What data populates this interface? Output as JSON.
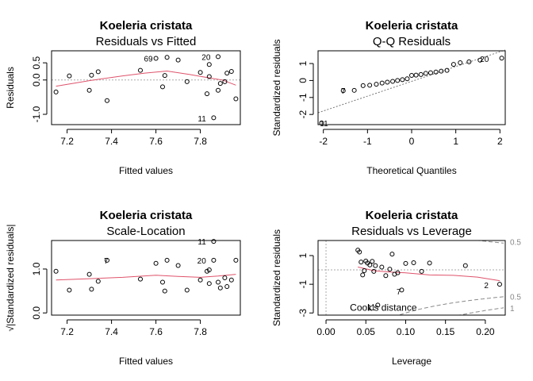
{
  "chart_data": [
    {
      "type": "scatter",
      "title": "Koeleria cristata",
      "subtitle": "Residuals vs Fitted",
      "xlabel": "Fitted values",
      "ylabel": "Residuals",
      "xlim": [
        7.13,
        7.98
      ],
      "ylim": [
        -1.3,
        0.85
      ],
      "xticks": [
        7.2,
        7.4,
        7.6,
        7.8
      ],
      "yticks": [
        -1.0,
        0.0,
        0.5
      ],
      "xtick_labels": [
        "7.2",
        "7.4",
        "7.6",
        "7.8"
      ],
      "ytick_labels": [
        "-1.0",
        "0.0",
        "0.5"
      ],
      "ref_line": {
        "axis": "y",
        "value": 0
      },
      "points": [
        {
          "x": 7.15,
          "y": -0.35
        },
        {
          "x": 7.21,
          "y": 0.12
        },
        {
          "x": 7.3,
          "y": -0.3
        },
        {
          "x": 7.31,
          "y": 0.14
        },
        {
          "x": 7.34,
          "y": 0.24
        },
        {
          "x": 7.38,
          "y": -0.6
        },
        {
          "x": 7.53,
          "y": 0.28
        },
        {
          "x": 7.6,
          "y": 0.63
        },
        {
          "x": 7.63,
          "y": -0.2
        },
        {
          "x": 7.64,
          "y": 0.13
        },
        {
          "x": 7.65,
          "y": 0.66
        },
        {
          "x": 7.7,
          "y": 0.58
        },
        {
          "x": 7.74,
          "y": -0.05
        },
        {
          "x": 7.8,
          "y": 0.22
        },
        {
          "x": 7.83,
          "y": -0.4
        },
        {
          "x": 7.84,
          "y": 0.1
        },
        {
          "x": 7.84,
          "y": 0.45
        },
        {
          "x": 7.86,
          "y": -1.1
        },
        {
          "x": 7.88,
          "y": 0.68
        },
        {
          "x": 7.88,
          "y": -0.3
        },
        {
          "x": 7.89,
          "y": -0.1
        },
        {
          "x": 7.91,
          "y": -0.05
        },
        {
          "x": 7.92,
          "y": 0.2
        },
        {
          "x": 7.94,
          "y": 0.25
        },
        {
          "x": 7.96,
          "y": -0.55
        }
      ],
      "smooth": [
        {
          "x": 7.15,
          "y": -0.18
        },
        {
          "x": 7.3,
          "y": -0.02
        },
        {
          "x": 7.45,
          "y": 0.12
        },
        {
          "x": 7.55,
          "y": 0.2
        },
        {
          "x": 7.65,
          "y": 0.26
        },
        {
          "x": 7.75,
          "y": 0.16
        },
        {
          "x": 7.85,
          "y": 0.05
        },
        {
          "x": 7.9,
          "y": 0.0
        },
        {
          "x": 7.96,
          "y": -0.15
        }
      ],
      "point_labels": [
        {
          "text": "69",
          "x": 7.6,
          "y": 0.63
        },
        {
          "text": "20",
          "x": 7.86,
          "y": 0.68
        },
        {
          "text": "11",
          "x": 7.84,
          "y": -1.12
        }
      ]
    },
    {
      "type": "scatter",
      "title": "Koeleria cristata",
      "subtitle": "Q-Q Residuals",
      "xlabel": "Theoretical Quantiles",
      "ylabel": "Standardized residuals",
      "xlim": [
        -2.12,
        2.12
      ],
      "ylim": [
        -2.6,
        1.75
      ],
      "xticks": [
        -2,
        -1,
        0,
        1,
        2
      ],
      "yticks": [
        -2,
        -1,
        0,
        1
      ],
      "xtick_labels": [
        "-2",
        "-1",
        "0",
        "1",
        "2"
      ],
      "ytick_labels": [
        "-2",
        "-1",
        "0",
        "1"
      ],
      "ref_line": {
        "axis": "diag",
        "from": [
          -2.12,
          -1.9
        ],
        "to": [
          2.12,
          1.8
        ]
      },
      "points": [
        {
          "x": -2.04,
          "y": -2.5
        },
        {
          "x": -1.55,
          "y": -0.6
        },
        {
          "x": -1.3,
          "y": -0.58
        },
        {
          "x": -1.1,
          "y": -0.3
        },
        {
          "x": -0.95,
          "y": -0.28
        },
        {
          "x": -0.8,
          "y": -0.22
        },
        {
          "x": -0.67,
          "y": -0.15
        },
        {
          "x": -0.55,
          "y": -0.1
        },
        {
          "x": -0.43,
          "y": -0.05
        },
        {
          "x": -0.32,
          "y": 0.0
        },
        {
          "x": -0.21,
          "y": 0.05
        },
        {
          "x": -0.1,
          "y": 0.1
        },
        {
          "x": 0.0,
          "y": 0.3
        },
        {
          "x": 0.1,
          "y": 0.32
        },
        {
          "x": 0.21,
          "y": 0.35
        },
        {
          "x": 0.32,
          "y": 0.42
        },
        {
          "x": 0.43,
          "y": 0.46
        },
        {
          "x": 0.55,
          "y": 0.5
        },
        {
          "x": 0.67,
          "y": 0.55
        },
        {
          "x": 0.8,
          "y": 0.6
        },
        {
          "x": 0.95,
          "y": 0.95
        },
        {
          "x": 1.1,
          "y": 1.05
        },
        {
          "x": 1.3,
          "y": 1.1
        },
        {
          "x": 1.55,
          "y": 1.2
        },
        {
          "x": 2.04,
          "y": 1.32
        }
      ],
      "point_labels": [
        {
          "text": "20",
          "x": 1.82,
          "y": 1.28
        },
        {
          "text": "7",
          "x": -1.43,
          "y": -0.6
        },
        {
          "text": "11",
          "x": -1.82,
          "y": -2.5
        }
      ]
    },
    {
      "type": "scatter",
      "title": "Koeleria cristata",
      "subtitle": "Scale-Location",
      "xlabel": "Fitted values",
      "ylabel": "√|Standardized residuals|",
      "xlim": [
        7.13,
        7.98
      ],
      "ylim": [
        -0.05,
        1.65
      ],
      "xticks": [
        7.2,
        7.4,
        7.6,
        7.8
      ],
      "yticks": [
        0.0,
        1.0
      ],
      "xtick_labels": [
        "7.2",
        "7.4",
        "7.6",
        "7.8"
      ],
      "ytick_labels": [
        "0.0",
        "1.0"
      ],
      "points": [
        {
          "x": 7.15,
          "y": 0.95
        },
        {
          "x": 7.21,
          "y": 0.52
        },
        {
          "x": 7.3,
          "y": 0.88
        },
        {
          "x": 7.31,
          "y": 0.54
        },
        {
          "x": 7.34,
          "y": 0.72
        },
        {
          "x": 7.38,
          "y": 1.2
        },
        {
          "x": 7.53,
          "y": 0.77
        },
        {
          "x": 7.6,
          "y": 1.13
        },
        {
          "x": 7.63,
          "y": 0.7
        },
        {
          "x": 7.64,
          "y": 0.5
        },
        {
          "x": 7.65,
          "y": 1.2
        },
        {
          "x": 7.7,
          "y": 1.08
        },
        {
          "x": 7.74,
          "y": 0.52
        },
        {
          "x": 7.8,
          "y": 0.75
        },
        {
          "x": 7.83,
          "y": 0.95
        },
        {
          "x": 7.84,
          "y": 0.67
        },
        {
          "x": 7.84,
          "y": 0.98
        },
        {
          "x": 7.86,
          "y": 1.63
        },
        {
          "x": 7.86,
          "y": 1.2
        },
        {
          "x": 7.88,
          "y": 0.7
        },
        {
          "x": 7.89,
          "y": 0.57
        },
        {
          "x": 7.91,
          "y": 0.8
        },
        {
          "x": 7.92,
          "y": 0.6
        },
        {
          "x": 7.94,
          "y": 0.75
        },
        {
          "x": 7.96,
          "y": 1.2
        }
      ],
      "smooth": [
        {
          "x": 7.15,
          "y": 0.75
        },
        {
          "x": 7.3,
          "y": 0.78
        },
        {
          "x": 7.45,
          "y": 0.81
        },
        {
          "x": 7.6,
          "y": 0.86
        },
        {
          "x": 7.7,
          "y": 0.83
        },
        {
          "x": 7.8,
          "y": 0.81
        },
        {
          "x": 7.88,
          "y": 0.84
        },
        {
          "x": 7.96,
          "y": 0.88
        }
      ],
      "point_labels": [
        {
          "text": "11",
          "x": 7.84,
          "y": 1.63
        },
        {
          "text": "20",
          "x": 7.84,
          "y": 1.2
        },
        {
          "text": "7",
          "x": 7.4,
          "y": 1.2
        }
      ]
    },
    {
      "type": "scatter",
      "title": "Koeleria cristata",
      "subtitle": "Residuals vs Leverage",
      "xlabel": "Leverage",
      "ylabel": "Standardized residuals",
      "xlim": [
        -0.01,
        0.225
      ],
      "ylim": [
        -3.15,
        2.05
      ],
      "xticks": [
        0.0,
        0.05,
        0.1,
        0.15,
        0.2
      ],
      "yticks": [
        -3,
        -1,
        1
      ],
      "xtick_labels": [
        "0.00",
        "0.05",
        "0.10",
        "0.15",
        "0.20"
      ],
      "ytick_labels": [
        "-3",
        "-1",
        "1"
      ],
      "ref_line": {
        "axis": "y",
        "value": 0
      },
      "ref_vline": 0,
      "cook_label": "Cook's distance",
      "cook_ticks": [
        {
          "text": "0.5",
          "y": 1.9
        },
        {
          "text": "0.5",
          "y": -1.9
        },
        {
          "text": "1",
          "y": -2.7
        }
      ],
      "cook_curves": [
        {
          "sign": 1,
          "level": 0.5
        },
        {
          "sign": -1,
          "level": 0.5
        },
        {
          "sign": -1,
          "level": 1
        }
      ],
      "points": [
        {
          "x": 0.04,
          "y": 1.38
        },
        {
          "x": 0.042,
          "y": 1.25
        },
        {
          "x": 0.044,
          "y": 0.55
        },
        {
          "x": 0.046,
          "y": -0.35
        },
        {
          "x": 0.048,
          "y": -0.05
        },
        {
          "x": 0.05,
          "y": 0.62
        },
        {
          "x": 0.052,
          "y": 0.48
        },
        {
          "x": 0.055,
          "y": 0.35
        },
        {
          "x": 0.058,
          "y": 0.6
        },
        {
          "x": 0.06,
          "y": -0.1
        },
        {
          "x": 0.062,
          "y": 0.3
        },
        {
          "x": 0.065,
          "y": -2.45
        },
        {
          "x": 0.07,
          "y": 0.2
        },
        {
          "x": 0.075,
          "y": -0.4
        },
        {
          "x": 0.08,
          "y": 0.05
        },
        {
          "x": 0.083,
          "y": 1.1
        },
        {
          "x": 0.086,
          "y": -0.3
        },
        {
          "x": 0.09,
          "y": -0.2
        },
        {
          "x": 0.095,
          "y": -1.4
        },
        {
          "x": 0.1,
          "y": 0.45
        },
        {
          "x": 0.11,
          "y": 0.5
        },
        {
          "x": 0.12,
          "y": -0.1
        },
        {
          "x": 0.13,
          "y": 0.48
        },
        {
          "x": 0.175,
          "y": 0.3
        },
        {
          "x": 0.218,
          "y": -1.0
        }
      ],
      "smooth": [
        {
          "x": 0.04,
          "y": 0.2
        },
        {
          "x": 0.06,
          "y": -0.05
        },
        {
          "x": 0.08,
          "y": -0.15
        },
        {
          "x": 0.1,
          "y": -0.2
        },
        {
          "x": 0.13,
          "y": -0.35
        },
        {
          "x": 0.16,
          "y": -0.38
        },
        {
          "x": 0.19,
          "y": -0.5
        },
        {
          "x": 0.218,
          "y": -0.75
        }
      ],
      "point_labels": [
        {
          "text": "2",
          "x": 0.208,
          "y": -1.05
        },
        {
          "text": "7",
          "x": 0.098,
          "y": -1.5
        },
        {
          "text": "11",
          "x": 0.066,
          "y": -2.6
        }
      ]
    }
  ]
}
